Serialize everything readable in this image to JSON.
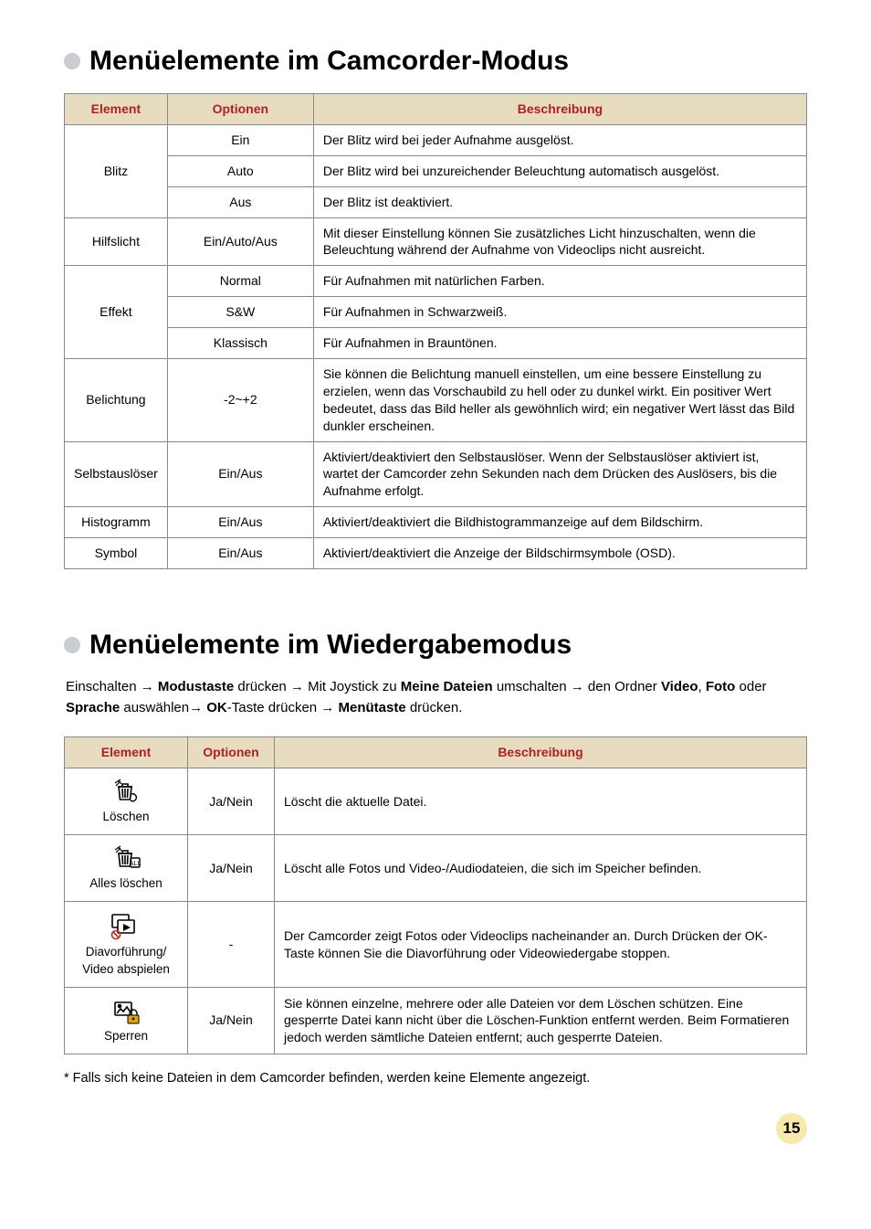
{
  "section1": {
    "title": "Menüelemente im Camcorder-Modus",
    "headers": {
      "element": "Element",
      "optionen": "Optionen",
      "beschreibung": "Beschreibung"
    },
    "rows": [
      {
        "el": "Blitz",
        "opts": [
          {
            "o": "Ein",
            "d": "Der Blitz wird bei jeder Aufnahme ausgelöst."
          },
          {
            "o": "Auto",
            "d": "Der Blitz wird bei unzureichender Beleuchtung automatisch ausgelöst."
          },
          {
            "o": "Aus",
            "d": "Der Blitz ist deaktiviert."
          }
        ]
      },
      {
        "el": "Hilfslicht",
        "opts": [
          {
            "o": "Ein/Auto/Aus",
            "d": "Mit dieser Einstellung können Sie zusätzliches Licht hinzuschalten, wenn die Beleuchtung während der Aufnahme von Videoclips nicht ausreicht."
          }
        ]
      },
      {
        "el": "Effekt",
        "opts": [
          {
            "o": "Normal",
            "d": "Für Aufnahmen mit natürlichen Farben."
          },
          {
            "o": "S&W",
            "d": "Für Aufnahmen in Schwarzweiß."
          },
          {
            "o": "Klassisch",
            "d": "Für Aufnahmen in Brauntönen."
          }
        ]
      },
      {
        "el": "Belichtung",
        "opts": [
          {
            "o": "-2~+2",
            "d": "Sie können die Belichtung manuell einstellen, um eine bessere Einstellung zu erzielen, wenn das Vorschaubild zu hell oder zu dunkel wirkt. Ein positiver Wert bedeutet, dass das Bild heller als gewöhnlich wird; ein negativer Wert lässt das Bild dunkler erscheinen."
          }
        ]
      },
      {
        "el": "Selbstauslöser",
        "opts": [
          {
            "o": "Ein/Aus",
            "d": "Aktiviert/deaktiviert den Selbstauslöser. Wenn der Selbstauslöser aktiviert ist, wartet der Camcorder zehn Sekunden nach dem Drücken des Auslösers, bis die Aufnahme erfolgt."
          }
        ]
      },
      {
        "el": "Histogramm",
        "opts": [
          {
            "o": "Ein/Aus",
            "d": "Aktiviert/deaktiviert die Bildhistogrammanzeige auf dem Bildschirm."
          }
        ]
      },
      {
        "el": "Symbol",
        "opts": [
          {
            "o": "Ein/Aus",
            "d": "Aktiviert/deaktiviert die Anzeige der Bildschirmsymbole (OSD)."
          }
        ]
      }
    ]
  },
  "section2": {
    "title": "Menüelemente im Wiedergabemodus",
    "intro_parts": {
      "p0": "Einschalten → ",
      "b1": "Modustaste",
      "p1": " drücken → Mit Joystick zu ",
      "b2": "Meine Dateien",
      "p2": " umschalten → den Ordner ",
      "b3": "Video",
      "p3": ", ",
      "b4": "Foto",
      "p4": " oder ",
      "b5": "Sprache",
      "p5": " auswählen→ ",
      "b6": "OK",
      "p6": "-Taste drücken → ",
      "b7": "Menütaste",
      "p7": " drücken."
    },
    "headers": {
      "element": "Element",
      "optionen": "Optionen",
      "beschreibung": "Beschreibung"
    },
    "rows": [
      {
        "label": "Löschen",
        "opt": "Ja/Nein",
        "desc": "Löscht die aktuelle Datei.",
        "icon": "trash-one"
      },
      {
        "label": "Alles löschen",
        "opt": "Ja/Nein",
        "desc": "Löscht alle Fotos und Video-/Audiodateien, die sich im Speicher befinden.",
        "icon": "trash-all"
      },
      {
        "label": "Diavorführung/ Video abspielen",
        "opt": "-",
        "desc": "Der Camcorder zeigt Fotos oder Videoclips nacheinander an. Durch Drücken der OK-Taste können Sie die Diavorführung oder Videowiedergabe stoppen.",
        "icon": "slideshow"
      },
      {
        "label": "Sperren",
        "opt": "Ja/Nein",
        "desc": "Sie können einzelne, mehrere oder alle Dateien vor dem Löschen schützen. Eine gesperrte Datei kann nicht über die Löschen-Funktion entfernt werden. Beim Formatieren jedoch werden sämtliche Dateien entfernt; auch gesperrte Dateien.",
        "icon": "lock"
      }
    ]
  },
  "footnote": "* Falls sich keine Dateien in dem Camcorder befinden, werden keine Elemente angezeigt.",
  "page": "15",
  "colors": {
    "header_bg": "#e7dcc0",
    "header_fg": "#b02020",
    "bullet": "#c9ccd1",
    "pagenum_bg": "#f6e9a9",
    "border": "#888888"
  }
}
